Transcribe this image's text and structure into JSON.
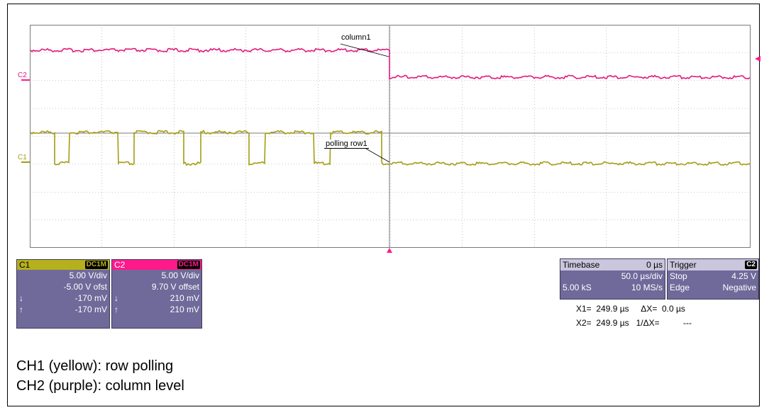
{
  "labels": {
    "column1": "column1",
    "polling_row1": "polling row1",
    "c2_marker": "C2",
    "c1_marker": "C1"
  },
  "channels": [
    {
      "name": "C1",
      "coupling": "DC1M",
      "scale": "5.00 V/div",
      "offset": "-5.00 V ofst",
      "cursor_down": "-170 mV",
      "cursor_up": "-170 mV",
      "color": "#b7b01d"
    },
    {
      "name": "C2",
      "coupling": "DC1M",
      "scale": "5.00 V/div",
      "offset": "9.70 V offset",
      "cursor_down": "210 mV",
      "cursor_up": "210 mV",
      "color": "#ff1a8c"
    }
  ],
  "timebase": {
    "label": "Timebase",
    "delay": "0 µs",
    "per_div": "50.0 µs/div",
    "samples": "5.00 kS",
    "rate": "10 MS/s"
  },
  "trigger": {
    "label": "Trigger",
    "source": "C2",
    "mode": "Stop",
    "level": "4.25 V",
    "type": "Edge",
    "slope": "Negative"
  },
  "cursors": {
    "line1": "X1=  249.9 µs     ΔX=  0.0 µs",
    "line2": "X2=  249.9 µs   1/ΔX=          ---"
  },
  "notes": [
    "CH1 (yellow): row polling",
    "CH2 (purple): column level"
  ]
}
